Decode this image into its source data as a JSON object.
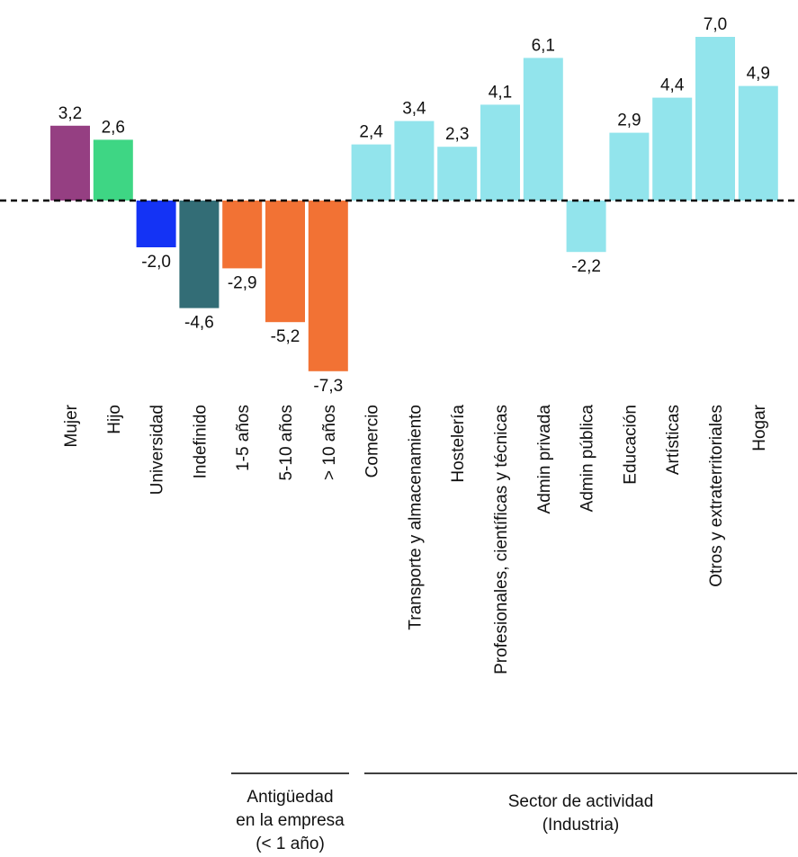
{
  "chart_data": {
    "type": "bar",
    "categories": [
      "Mujer",
      "Hijo",
      "Universidad",
      "Indefinido",
      "1-5 años",
      "5-10 años",
      "> 10 años",
      "Comercio",
      "Transporte y almacenamiento",
      "Hostelería",
      "Profesionales, científicas y técnicas",
      "Admin privada",
      "Admin pública",
      "Educación",
      "Artísticas",
      "Otros y extraterritoriales",
      "Hogar"
    ],
    "values": [
      3.2,
      2.6,
      -2.0,
      -4.6,
      -2.9,
      -5.2,
      -7.3,
      2.4,
      3.4,
      2.3,
      4.1,
      6.1,
      -2.2,
      2.9,
      4.4,
      7.0,
      4.9
    ],
    "value_labels": [
      "3,2",
      "2,6",
      "-2,0",
      "-4,6",
      "-2,9",
      "-5,2",
      "-7,3",
      "2,4",
      "3,4",
      "2,3",
      "4,1",
      "6,1",
      "-2,2",
      "2,9",
      "4,4",
      "7,0",
      "4,9"
    ],
    "colors": [
      "#953f82",
      "#3ed684",
      "#1433f5",
      "#336d76",
      "#f27234",
      "#f27234",
      "#f27234",
      "#92e4ec",
      "#92e4ec",
      "#92e4ec",
      "#92e4ec",
      "#92e4ec",
      "#92e4ec",
      "#92e4ec",
      "#92e4ec",
      "#92e4ec",
      "#92e4ec"
    ],
    "baseline": "dashed",
    "grid": false,
    "groups": [
      {
        "label_lines": [
          "Antigüedad",
          "en la empresa",
          "(< 1 año)"
        ],
        "first": 4,
        "last": 6
      },
      {
        "label_lines": [
          "Sector de actividad",
          "(Industria)"
        ],
        "first": 7,
        "last": 16
      }
    ]
  }
}
